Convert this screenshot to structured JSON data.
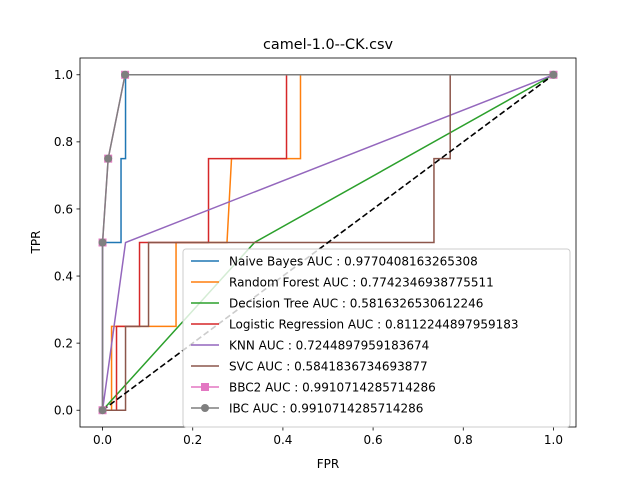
{
  "chart_data": {
    "type": "line",
    "title": "camel-1.0--CK.csv",
    "xlabel": "FPR",
    "ylabel": "TPR",
    "xlim": [
      -0.05,
      1.05
    ],
    "ylim": [
      -0.05,
      1.05
    ],
    "xticks": [
      "0.0",
      "0.2",
      "0.4",
      "0.6",
      "0.8",
      "1.0"
    ],
    "yticks": [
      "0.0",
      "0.2",
      "0.4",
      "0.6",
      "0.8",
      "1.0"
    ],
    "grid": false,
    "legend_position": "lower-right",
    "diagonal": {
      "x": [
        0,
        1
      ],
      "y": [
        0,
        1
      ],
      "color": "#000000",
      "style": "dashed"
    },
    "series": [
      {
        "name": "Naive Bayes AUC : 0.9770408163265308",
        "color": "#1f77b4",
        "marker": "none",
        "step": true,
        "x": [
          0,
          0,
          0.041,
          0.041,
          0.051,
          0.051,
          1.0
        ],
        "y": [
          0,
          0.5,
          0.5,
          0.75,
          0.75,
          1.0,
          1.0
        ]
      },
      {
        "name": "Random Forest AUC : 0.7742346938775511",
        "color": "#ff7f0e",
        "marker": "none",
        "step": true,
        "x": [
          0,
          0.02,
          0.02,
          0.163,
          0.163,
          0.276,
          0.286,
          0.439,
          0.439,
          1.0
        ],
        "y": [
          0,
          0,
          0.25,
          0.25,
          0.5,
          0.5,
          0.75,
          0.75,
          1.0,
          1.0
        ]
      },
      {
        "name": "Decision Tree AUC : 0.5816326530612246",
        "color": "#2ca02c",
        "marker": "none",
        "step": false,
        "x": [
          0,
          0.337,
          1.0
        ],
        "y": [
          0,
          0.5,
          1.0
        ]
      },
      {
        "name": "Logistic Regression AUC : 0.8112244897959183",
        "color": "#d62728",
        "marker": "none",
        "step": true,
        "x": [
          0,
          0.031,
          0.031,
          0.082,
          0.082,
          0.235,
          0.235,
          0.408,
          0.408,
          1.0
        ],
        "y": [
          0,
          0,
          0.25,
          0.25,
          0.5,
          0.5,
          0.75,
          0.75,
          1.0,
          1.0
        ]
      },
      {
        "name": "KNN AUC : 0.7244897959183674",
        "color": "#9467bd",
        "marker": "none",
        "step": false,
        "x": [
          0,
          0.051,
          1.0
        ],
        "y": [
          0,
          0.5,
          1.0
        ]
      },
      {
        "name": "SVC AUC : 0.5841836734693877",
        "color": "#8c564b",
        "marker": "none",
        "step": true,
        "x": [
          0,
          0.051,
          0.051,
          0.102,
          0.102,
          0.735,
          0.735,
          0.771,
          0.771,
          1.0
        ],
        "y": [
          0,
          0,
          0.25,
          0.25,
          0.5,
          0.5,
          0.75,
          0.75,
          1.0,
          1.0
        ]
      },
      {
        "name": "BBC2 AUC : 0.9910714285714286",
        "color": "#e377c2",
        "marker": "square",
        "step": false,
        "x": [
          0,
          0,
          0.0125,
          0.05,
          1.0
        ],
        "y": [
          0,
          0.5,
          0.75,
          1.0,
          1.0
        ]
      },
      {
        "name": "IBC AUC : 0.9910714285714286",
        "color": "#7f7f7f",
        "marker": "circle",
        "step": false,
        "x": [
          0,
          0,
          0.0125,
          0.05,
          1.0
        ],
        "y": [
          0,
          0.5,
          0.75,
          1.0,
          1.0
        ]
      }
    ]
  }
}
